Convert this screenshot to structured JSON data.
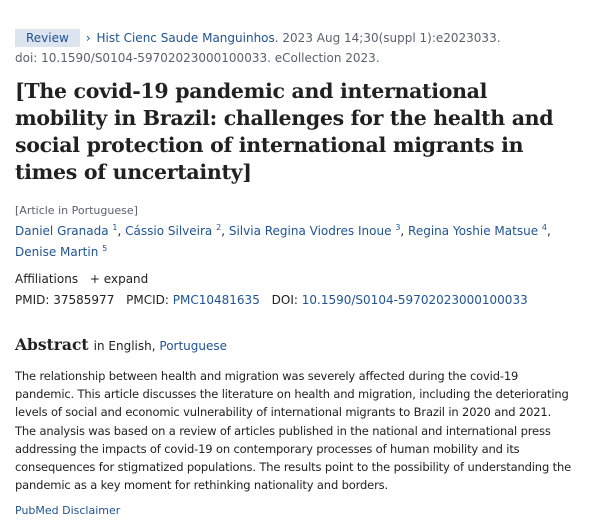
{
  "header": {
    "badge": "Review",
    "journal": "Hist Cienc Saude Manguinhos",
    "citation": ". 2023 Aug 14;30(suppl 1):e2023033.",
    "doi_line": "doi: 10.1590/S0104-59702023000100033. eCollection 2023."
  },
  "article": {
    "title": "[The covid-19 pandemic and international mobility in Brazil: challenges for the health and social protection of international migrants in times of uncertainty]",
    "language_note": "[Article in Portuguese]"
  },
  "authors": [
    {
      "name": "Daniel Granada",
      "sup": "1"
    },
    {
      "name": "Cássio Silveira",
      "sup": "2"
    },
    {
      "name": "Silvia Regina Viodres Inoue",
      "sup": "3"
    },
    {
      "name": "Regina Yoshie Matsue",
      "sup": "4"
    },
    {
      "name": "Denise Martin",
      "sup": "5"
    }
  ],
  "affiliations": {
    "label": "Affiliations",
    "expand": "expand"
  },
  "ids": {
    "pmid_label": "PMID:",
    "pmid": "37585977",
    "pmcid_label": "PMCID:",
    "pmcid": "PMC10481635",
    "doi_label": "DOI:",
    "doi": "10.1590/S0104-59702023000100033"
  },
  "abstract": {
    "heading": "Abstract",
    "in_label": "in English,",
    "alt_language": "Portuguese",
    "text": "The relationship between health and migration was severely affected during the covid-19 pandemic. This article discusses the literature on health and migration, including the deteriorating levels of social and economic vulnerability of international migrants to Brazil in 2020 and 2021. The analysis was based on a review of articles published in the national and international press addressing the impacts of covid-19 on contemporary processes of human mobility and its consequences for stigmatized populations. The results point to the possibility of understanding the pandemic as a key moment for rethinking nationality and borders."
  },
  "footer": {
    "disclaimer": "PubMed Disclaimer"
  }
}
